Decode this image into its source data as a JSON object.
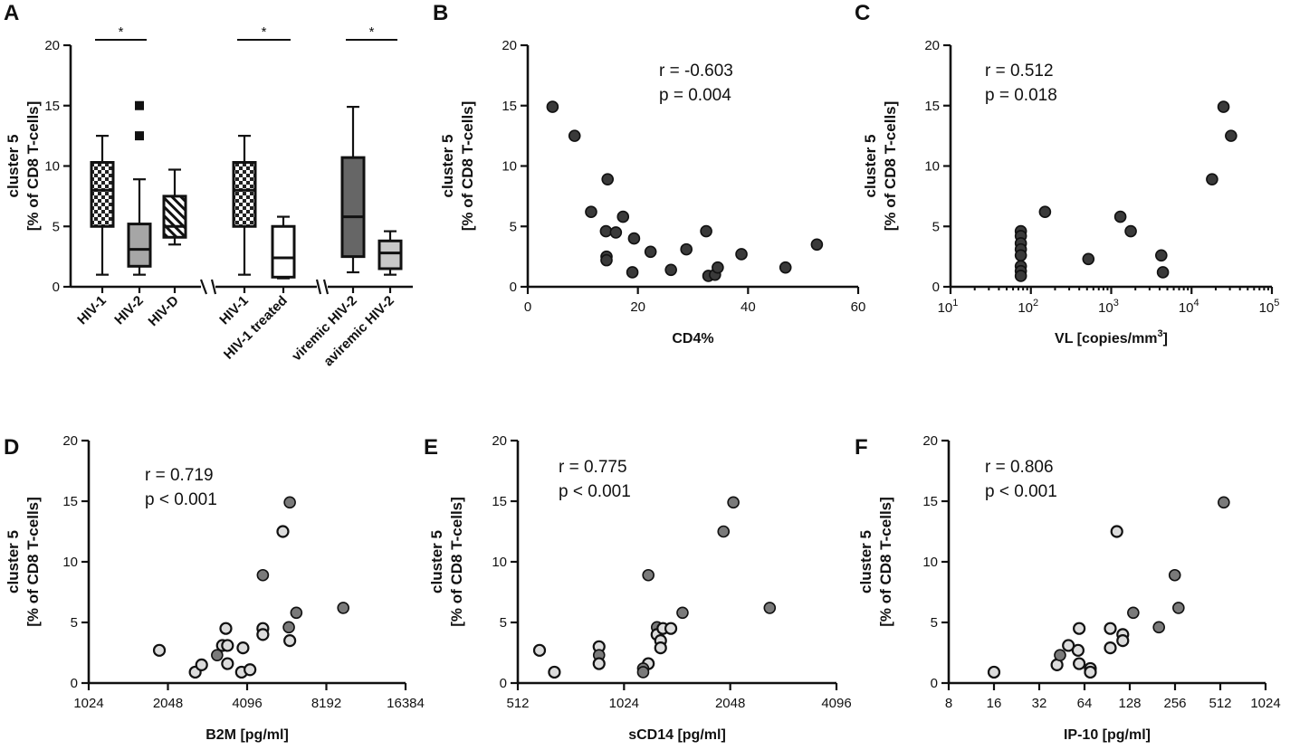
{
  "colors": {
    "ink": "#111111",
    "dark_point": "#3a3a3a",
    "mid_gray_point": "#7a7a7a",
    "light_point": "#dcdcdc",
    "dark_box": "#666666",
    "light_box": "#c8c8c8"
  },
  "chart_data": [
    {
      "panel": "A",
      "type": "box",
      "ylabel_line1": "cluster 5",
      "ylabel_line2": "[% of CD8 T-cells]",
      "ylim": [
        0,
        20
      ],
      "yticks": [
        "0",
        "5",
        "10",
        "15",
        "20"
      ],
      "groups": [
        {
          "name": "HIV-1",
          "min": 1,
          "q1": 5,
          "median": 8,
          "q3": 10.3,
          "max": 12.5,
          "fill": "checker",
          "outliers": []
        },
        {
          "name": "HIV-2",
          "min": 1,
          "q1": 1.7,
          "median": 3.1,
          "q3": 5.2,
          "max": 8.9,
          "fill": "gray",
          "outliers": [
            15,
            12.5
          ]
        },
        {
          "name": "HIV-D",
          "min": 3.5,
          "q1": 4.1,
          "median": 5,
          "q3": 7.5,
          "max": 9.7,
          "fill": "hatch",
          "outliers": []
        },
        {
          "name": "HIV-1",
          "min": 1,
          "q1": 5,
          "median": 8,
          "q3": 10.3,
          "max": 12.5,
          "fill": "checker",
          "outliers": []
        },
        {
          "name": "HIV-1 treated",
          "min": 0.7,
          "q1": 0.8,
          "median": 2.4,
          "q3": 5,
          "max": 5.8,
          "fill": "white",
          "outliers": []
        },
        {
          "name": "viremic HIV-2",
          "min": 1.2,
          "q1": 2.5,
          "median": 5.8,
          "q3": 10.7,
          "max": 14.9,
          "fill": "dark",
          "outliers": []
        },
        {
          "name": "aviremic HIV-2",
          "min": 1,
          "q1": 1.5,
          "median": 2.8,
          "q3": 3.8,
          "max": 4.6,
          "fill": "light",
          "outliers": []
        }
      ],
      "significance": [
        {
          "from": 0,
          "to": 1,
          "label": "*"
        },
        {
          "from": 3,
          "to": 4,
          "label": "*"
        },
        {
          "from": 5,
          "to": 6,
          "label": "*"
        }
      ]
    },
    {
      "panel": "B",
      "type": "scatter",
      "xscale": "linear",
      "xlabel": "CD4%",
      "ylabel_line1": "cluster 5",
      "ylabel_line2": "[% of CD8 T-cells]",
      "xlim": [
        0,
        60
      ],
      "ylim": [
        0,
        20
      ],
      "xticks": [
        "0",
        "20",
        "40",
        "60"
      ],
      "yticks": [
        "0",
        "5",
        "10",
        "15",
        "20"
      ],
      "stat_r": "r = -0.603",
      "stat_p": "p = 0.004",
      "points": [
        {
          "x": 4.5,
          "y": 14.9,
          "t": "d"
        },
        {
          "x": 8.5,
          "y": 12.5,
          "t": "d"
        },
        {
          "x": 11.5,
          "y": 6.2,
          "t": "d"
        },
        {
          "x": 14.5,
          "y": 8.9,
          "t": "d"
        },
        {
          "x": 14.2,
          "y": 4.6,
          "t": "d"
        },
        {
          "x": 16,
          "y": 4.5,
          "t": "d"
        },
        {
          "x": 14.3,
          "y": 2.5,
          "t": "d"
        },
        {
          "x": 14.3,
          "y": 2.2,
          "t": "d"
        },
        {
          "x": 17.3,
          "y": 5.8,
          "t": "d"
        },
        {
          "x": 19.3,
          "y": 4,
          "t": "d"
        },
        {
          "x": 22.3,
          "y": 2.9,
          "t": "d"
        },
        {
          "x": 19,
          "y": 1.2,
          "t": "d"
        },
        {
          "x": 26,
          "y": 1.4,
          "t": "d"
        },
        {
          "x": 28.8,
          "y": 3.1,
          "t": "d"
        },
        {
          "x": 32.4,
          "y": 4.6,
          "t": "d"
        },
        {
          "x": 32.8,
          "y": 0.9,
          "t": "d"
        },
        {
          "x": 34,
          "y": 1,
          "t": "d"
        },
        {
          "x": 34.5,
          "y": 1.6,
          "t": "d"
        },
        {
          "x": 38.8,
          "y": 2.7,
          "t": "d"
        },
        {
          "x": 46.8,
          "y": 1.6,
          "t": "d"
        },
        {
          "x": 52.5,
          "y": 3.5,
          "t": "d"
        }
      ]
    },
    {
      "panel": "C",
      "type": "scatter",
      "xscale": "log10",
      "xlabel": "VL [copies/mm",
      "xlabel_sup": "3",
      "xlabel_end": "]",
      "ylabel_line1": "cluster 5",
      "ylabel_line2": "[% of CD8 T-cells]",
      "xlim": [
        10,
        100000
      ],
      "ylim": [
        0,
        20
      ],
      "xticks_base": "10",
      "xticks_exp": [
        "1",
        "2",
        "3",
        "4",
        "5"
      ],
      "yticks": [
        "0",
        "5",
        "10",
        "15",
        "20"
      ],
      "stat_r": "r = 0.512",
      "stat_p": "p = 0.018",
      "points": [
        {
          "x": 75,
          "y": 4.6,
          "t": "d"
        },
        {
          "x": 75,
          "y": 4.2,
          "t": "d"
        },
        {
          "x": 75,
          "y": 3.6,
          "t": "d"
        },
        {
          "x": 75,
          "y": 3.1,
          "t": "d"
        },
        {
          "x": 75,
          "y": 2.6,
          "t": "d"
        },
        {
          "x": 75,
          "y": 1.7,
          "t": "d"
        },
        {
          "x": 75,
          "y": 1.3,
          "t": "d"
        },
        {
          "x": 75,
          "y": 0.9,
          "t": "d"
        },
        {
          "x": 150,
          "y": 6.2,
          "t": "d"
        },
        {
          "x": 520,
          "y": 2.3,
          "t": "d"
        },
        {
          "x": 1300,
          "y": 5.8,
          "t": "d"
        },
        {
          "x": 1750,
          "y": 4.6,
          "t": "d"
        },
        {
          "x": 4200,
          "y": 2.6,
          "t": "d"
        },
        {
          "x": 4400,
          "y": 1.2,
          "t": "d"
        },
        {
          "x": 18000,
          "y": 8.9,
          "t": "d"
        },
        {
          "x": 25000,
          "y": 14.9,
          "t": "d"
        },
        {
          "x": 31000,
          "y": 12.5,
          "t": "d"
        }
      ]
    },
    {
      "panel": "D",
      "type": "scatter",
      "xscale": "log2",
      "xlabel": "B2M [pg/ml]",
      "ylabel_line1": "cluster 5",
      "ylabel_line2": "[% of CD8 T-cells]",
      "xlim": [
        1024,
        16384
      ],
      "ylim": [
        0,
        20
      ],
      "xticks": [
        "1024",
        "2048",
        "4096",
        "8192",
        "16384"
      ],
      "yticks": [
        "0",
        "5",
        "10",
        "15",
        "20"
      ],
      "stat_r": "r = 0.719",
      "stat_p": "p < 0.001",
      "points": [
        {
          "x": 1900,
          "y": 2.7,
          "t": "l"
        },
        {
          "x": 2600,
          "y": 0.9,
          "t": "l"
        },
        {
          "x": 2750,
          "y": 1.5,
          "t": "l"
        },
        {
          "x": 3150,
          "y": 2.3,
          "t": "d"
        },
        {
          "x": 3300,
          "y": 3.1,
          "t": "l"
        },
        {
          "x": 3400,
          "y": 4.5,
          "t": "l"
        },
        {
          "x": 3450,
          "y": 3.1,
          "t": "l"
        },
        {
          "x": 3450,
          "y": 1.6,
          "t": "l"
        },
        {
          "x": 3950,
          "y": 2.9,
          "t": "l"
        },
        {
          "x": 3900,
          "y": 0.9,
          "t": "l"
        },
        {
          "x": 4200,
          "y": 1.1,
          "t": "l"
        },
        {
          "x": 4700,
          "y": 8.9,
          "t": "d"
        },
        {
          "x": 4700,
          "y": 4.5,
          "t": "l"
        },
        {
          "x": 4700,
          "y": 4,
          "t": "l"
        },
        {
          "x": 5600,
          "y": 12.5,
          "t": "l"
        },
        {
          "x": 5950,
          "y": 14.9,
          "t": "d"
        },
        {
          "x": 5900,
          "y": 4.6,
          "t": "d"
        },
        {
          "x": 5950,
          "y": 3.5,
          "t": "l"
        },
        {
          "x": 6300,
          "y": 5.8,
          "t": "d"
        },
        {
          "x": 9500,
          "y": 6.2,
          "t": "d"
        }
      ]
    },
    {
      "panel": "E",
      "type": "scatter",
      "xscale": "log2",
      "xlabel": "sCD14 [pg/ml]",
      "ylabel_line1": "cluster 5",
      "ylabel_line2": "[% of CD8 T-cells]",
      "xlim": [
        512,
        4096
      ],
      "ylim": [
        0,
        20
      ],
      "xticks": [
        "512",
        "1024",
        "2048",
        "4096"
      ],
      "yticks": [
        "0",
        "5",
        "10",
        "15",
        "20"
      ],
      "stat_r": "r = 0.775",
      "stat_p": "p < 0.001",
      "points": [
        {
          "x": 590,
          "y": 2.7,
          "t": "l"
        },
        {
          "x": 650,
          "y": 0.9,
          "t": "l"
        },
        {
          "x": 870,
          "y": 3,
          "t": "l"
        },
        {
          "x": 870,
          "y": 2.3,
          "t": "d"
        },
        {
          "x": 870,
          "y": 1.6,
          "t": "l"
        },
        {
          "x": 1200,
          "y": 8.9,
          "t": "d"
        },
        {
          "x": 1200,
          "y": 1.6,
          "t": "l"
        },
        {
          "x": 1160,
          "y": 1.2,
          "t": "d"
        },
        {
          "x": 1160,
          "y": 0.9,
          "t": "d"
        },
        {
          "x": 1270,
          "y": 4.6,
          "t": "d"
        },
        {
          "x": 1270,
          "y": 4,
          "t": "l"
        },
        {
          "x": 1300,
          "y": 3.5,
          "t": "l"
        },
        {
          "x": 1300,
          "y": 2.9,
          "t": "l"
        },
        {
          "x": 1320,
          "y": 4.5,
          "t": "l"
        },
        {
          "x": 1390,
          "y": 4.5,
          "t": "l"
        },
        {
          "x": 1500,
          "y": 5.8,
          "t": "d"
        },
        {
          "x": 1960,
          "y": 12.5,
          "t": "d"
        },
        {
          "x": 2090,
          "y": 14.9,
          "t": "d"
        },
        {
          "x": 2650,
          "y": 6.2,
          "t": "d"
        }
      ]
    },
    {
      "panel": "F",
      "type": "scatter",
      "xscale": "log2",
      "xlabel": "IP-10 [pg/ml]",
      "ylabel_line1": "cluster 5",
      "ylabel_line2": "[% of CD8 T-cells]",
      "xlim": [
        8,
        1024
      ],
      "ylim": [
        0,
        20
      ],
      "xticks": [
        "8",
        "16",
        "32",
        "64",
        "128",
        "256",
        "512",
        "1024"
      ],
      "yticks": [
        "0",
        "5",
        "10",
        "15",
        "20"
      ],
      "stat_r": "r = 0.806",
      "stat_p": "p < 0.001",
      "points": [
        {
          "x": 16,
          "y": 0.9,
          "t": "l"
        },
        {
          "x": 42,
          "y": 1.5,
          "t": "l"
        },
        {
          "x": 44,
          "y": 2.3,
          "t": "d"
        },
        {
          "x": 50,
          "y": 3.1,
          "t": "l"
        },
        {
          "x": 58,
          "y": 2.7,
          "t": "l"
        },
        {
          "x": 59,
          "y": 4.5,
          "t": "l"
        },
        {
          "x": 59,
          "y": 1.6,
          "t": "l"
        },
        {
          "x": 70,
          "y": 1.2,
          "t": "l"
        },
        {
          "x": 70,
          "y": 0.9,
          "t": "l"
        },
        {
          "x": 95,
          "y": 4.5,
          "t": "l"
        },
        {
          "x": 95,
          "y": 2.9,
          "t": "l"
        },
        {
          "x": 105,
          "y": 12.5,
          "t": "l"
        },
        {
          "x": 115,
          "y": 4,
          "t": "l"
        },
        {
          "x": 115,
          "y": 3.5,
          "t": "l"
        },
        {
          "x": 135,
          "y": 5.8,
          "t": "d"
        },
        {
          "x": 200,
          "y": 4.6,
          "t": "d"
        },
        {
          "x": 255,
          "y": 8.9,
          "t": "d"
        },
        {
          "x": 270,
          "y": 6.2,
          "t": "d"
        },
        {
          "x": 540,
          "y": 14.9,
          "t": "d"
        }
      ]
    }
  ]
}
